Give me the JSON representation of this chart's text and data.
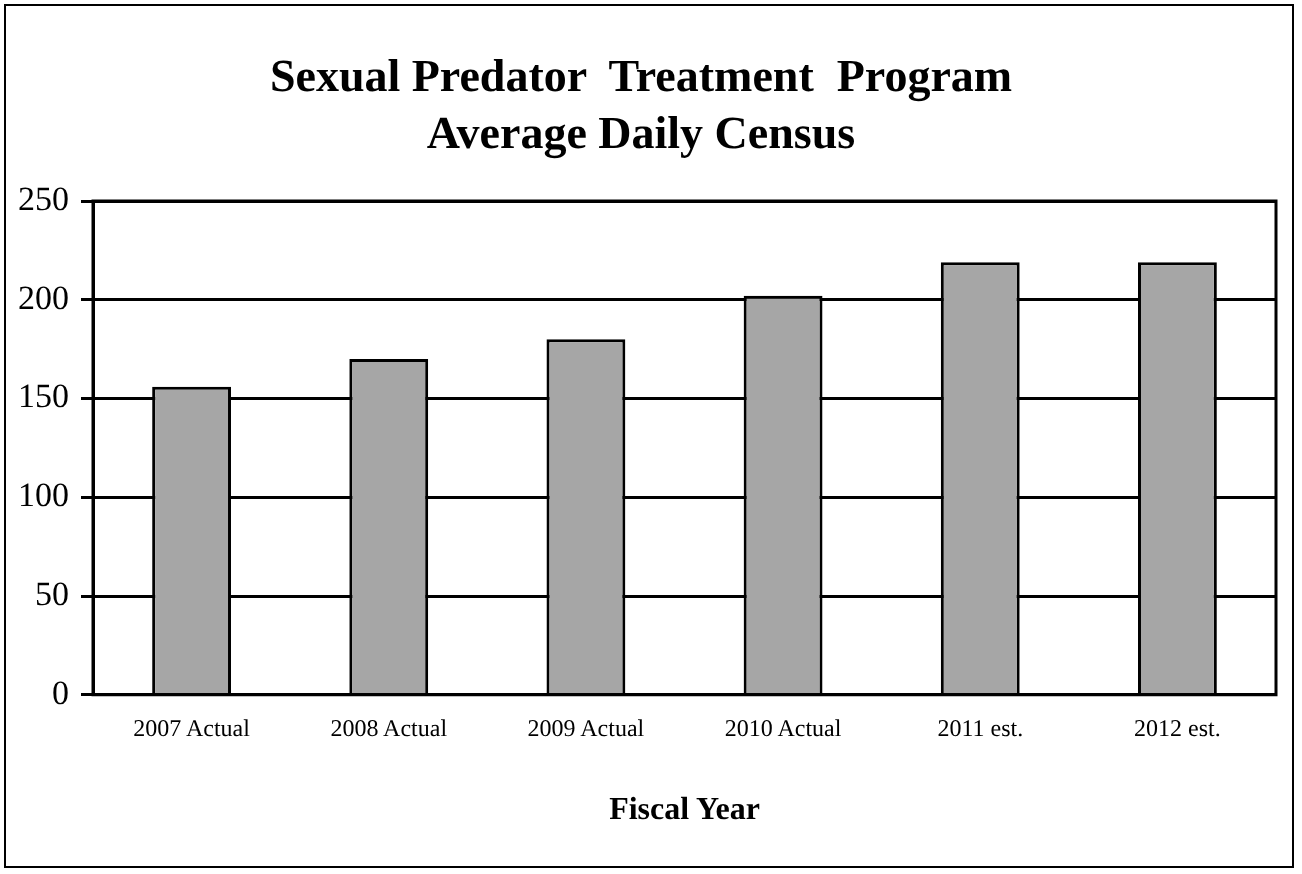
{
  "chart_data": {
    "type": "bar",
    "title": [
      "Sexual Predator  Treatment  Program",
      "Average Daily Census"
    ],
    "xlabel": "Fiscal Year",
    "categories": [
      "2007 Actual",
      "2008 Actual",
      "2009 Actual",
      "2010 Actual",
      "2011 est.",
      "2012 est."
    ],
    "values": [
      156,
      170,
      180,
      202,
      219,
      219
    ],
    "color": "#a6a6a6",
    "ylim": [
      0,
      250
    ],
    "yticks": [
      0,
      50,
      100,
      150,
      200,
      250
    ],
    "grid": "y",
    "legend": false
  }
}
